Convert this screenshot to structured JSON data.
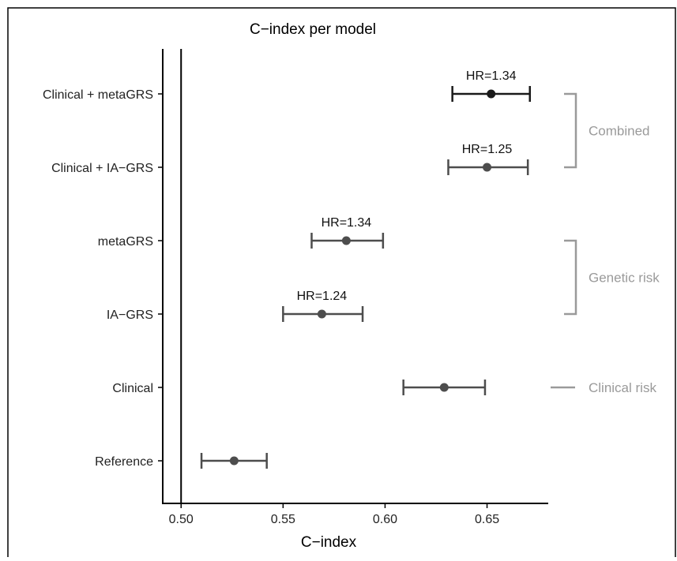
{
  "chart_data": {
    "type": "forest",
    "title": "C−index per model",
    "xlabel": "C−index",
    "ylabel": "",
    "xlim": [
      0.491,
      0.68
    ],
    "xticks": [
      0.5,
      0.55,
      0.6,
      0.65
    ],
    "xtick_labels": [
      "0.50",
      "0.55",
      "0.60",
      "0.65"
    ],
    "reference_line": 0.5,
    "categories": [
      "Clinical + metaGRS",
      "Clinical + IA−GRS",
      "metaGRS",
      "IA−GRS",
      "Clinical",
      "Reference"
    ],
    "estimates": [
      0.652,
      0.65,
      0.581,
      0.569,
      0.629,
      0.526
    ],
    "lower": [
      0.633,
      0.631,
      0.564,
      0.55,
      0.609,
      0.51
    ],
    "upper": [
      0.671,
      0.67,
      0.599,
      0.589,
      0.649,
      0.542
    ],
    "annotations": [
      "HR=1.34",
      "HR=1.25",
      "HR=1.34",
      "HR=1.24",
      "",
      ""
    ],
    "groups": [
      {
        "label": "Combined",
        "rows": [
          0,
          1
        ],
        "marker": "bracket"
      },
      {
        "label": "Genetic risk",
        "rows": [
          2,
          3
        ],
        "marker": "bracket"
      },
      {
        "label": "Clinical risk",
        "rows": [
          4,
          4
        ],
        "marker": "dash"
      }
    ],
    "colors": {
      "highlight": "#1a1a1a",
      "series": "#4d4d4d",
      "axis": "#000000",
      "group": "#9a9a9a",
      "text": "#222222"
    }
  }
}
